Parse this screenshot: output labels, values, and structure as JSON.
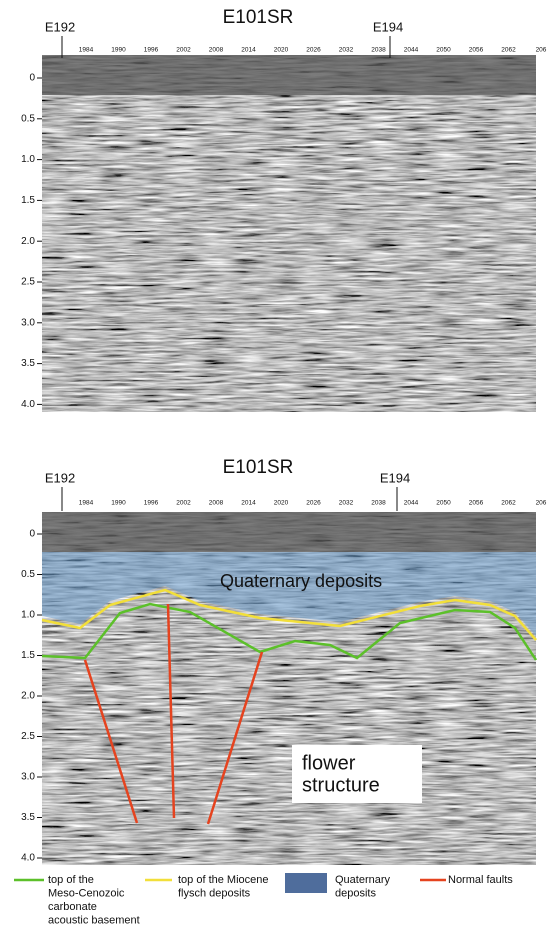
{
  "panels": [
    {
      "title": "E101SR",
      "markers": [
        "E192",
        "E194"
      ]
    },
    {
      "title": "E101SR",
      "markers": [
        "E192",
        "E194"
      ],
      "annotations": {
        "unit": "Quaternary deposits",
        "structure": [
          "flower",
          "structure"
        ]
      }
    }
  ],
  "shotpoints": [
    "1984",
    "1990",
    "1996",
    "2002",
    "2008",
    "2014",
    "2020",
    "2026",
    "2032",
    "2038",
    "2044",
    "2050",
    "2056",
    "2062",
    "206"
  ],
  "depths": [
    "0",
    "0.5",
    "1.0",
    "1.5",
    "2.0",
    "2.5",
    "3.0",
    "3.5",
    "4.0"
  ],
  "legend": [
    {
      "label": [
        "top of the",
        "Meso-Cenozoic",
        "carbonate",
        "acoustic basement"
      ]
    },
    {
      "label": [
        "top of the Miocene",
        "flysch deposits"
      ]
    },
    {
      "label": [
        "Quaternary",
        "deposits"
      ]
    },
    {
      "label": [
        "Normal faults"
      ]
    }
  ]
}
